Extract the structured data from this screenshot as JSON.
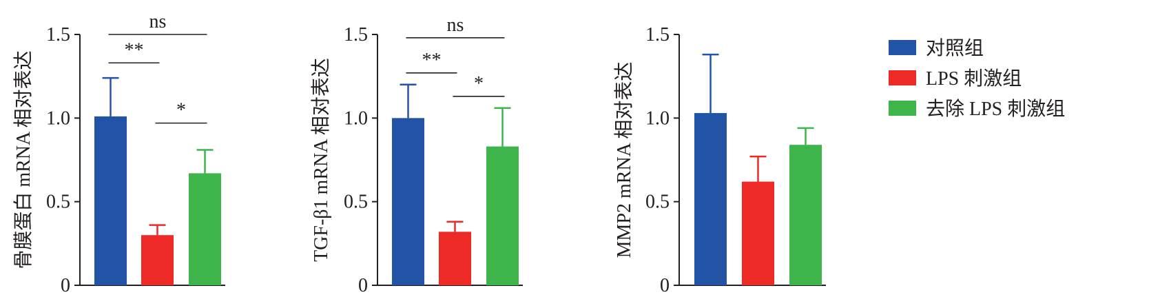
{
  "colors": {
    "axis": "#231f20",
    "control": "#2353a4",
    "lps": "#ee2a27",
    "removed": "#3db54a"
  },
  "legend": [
    {
      "label": "对照组",
      "color": "#2353a4"
    },
    {
      "label": "LPS 刺激组",
      "color": "#ee2a27"
    },
    {
      "label": "去除 LPS 刺激组",
      "color": "#3db54a"
    }
  ],
  "chart_data": [
    {
      "type": "bar",
      "ylabel": "骨膜蛋白 mRNA 相对表达",
      "ylim": [
        0,
        1.5
      ],
      "yticks": [
        "0",
        "0.5",
        "1.0",
        "1.5"
      ],
      "values": [
        1.01,
        0.3,
        0.67
      ],
      "errors": [
        0.23,
        0.06,
        0.14
      ],
      "significance": [
        {
          "from": 0,
          "to": 2,
          "label": "ns",
          "y": 1.5
        },
        {
          "from": 0,
          "to": 1,
          "label": "**",
          "y": 1.33
        },
        {
          "from": 1,
          "to": 2,
          "label": "*",
          "y": 0.97
        }
      ]
    },
    {
      "type": "bar",
      "ylabel": "TGF-β1 mRNA 相对表达",
      "ylim": [
        0,
        1.5
      ],
      "yticks": [
        "0",
        "0.5",
        "1.0",
        "1.5"
      ],
      "values": [
        1.0,
        0.32,
        0.83
      ],
      "errors": [
        0.2,
        0.06,
        0.23
      ],
      "significance": [
        {
          "from": 0,
          "to": 2,
          "label": "ns",
          "y": 1.48
        },
        {
          "from": 0,
          "to": 1,
          "label": "**",
          "y": 1.27
        },
        {
          "from": 1,
          "to": 2,
          "label": "*",
          "y": 1.13
        }
      ]
    },
    {
      "type": "bar",
      "ylabel": "MMP2 mRNA 相对表达",
      "ylim": [
        0,
        1.5
      ],
      "yticks": [
        "0",
        "0.5",
        "1.0",
        "1.5"
      ],
      "values": [
        1.03,
        0.62,
        0.84
      ],
      "errors": [
        0.35,
        0.15,
        0.1
      ],
      "significance": []
    }
  ]
}
